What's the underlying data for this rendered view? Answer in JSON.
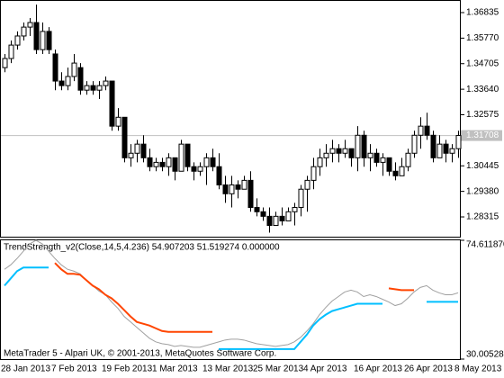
{
  "chart_data": [
    {
      "type": "candlestick",
      "categories": [
        "28 Jan 2013",
        null,
        null,
        null,
        null,
        null,
        null,
        null,
        "7 Feb 2013",
        null,
        null,
        null,
        null,
        null,
        null,
        null,
        "19 Feb 2013",
        null,
        null,
        null,
        null,
        null,
        null,
        null,
        "1 Mar 2013",
        null,
        null,
        null,
        null,
        null,
        null,
        null,
        "13 Mar 2013",
        null,
        null,
        null,
        null,
        null,
        null,
        null,
        "25 Mar 2013",
        null,
        null,
        null,
        null,
        null,
        null,
        null,
        "4 Apr 2013",
        null,
        null,
        null,
        null,
        null,
        null,
        null,
        "16 Apr 2013",
        null,
        null,
        null,
        null,
        null,
        null,
        null,
        "26 Apr 2013",
        null,
        null,
        null,
        null,
        null,
        null,
        null,
        "8 May 2013"
      ],
      "open": [
        1.3454,
        1.3492,
        1.3548,
        1.3586,
        1.3623,
        1.3642,
        1.3529,
        1.3605,
        1.3511,
        1.3398,
        1.3379,
        1.3417,
        1.3454,
        1.336,
        1.3379,
        1.336,
        1.3379,
        1.3398,
        1.321,
        1.3247,
        1.3078,
        1.3097,
        1.3135,
        1.3078,
        1.3041,
        1.3059,
        1.3041,
        1.3078,
        1.3022,
        1.3135,
        1.3041,
        1.3022,
        1.3041,
        1.3078,
        1.3041,
        1.2965,
        1.2928,
        1.2965,
        1.2947,
        1.2984,
        1.2871,
        1.2853,
        1.2834,
        1.2796,
        1.2834,
        1.2815,
        1.2853,
        1.2871,
        1.2947,
        1.2984,
        1.3041,
        1.3078,
        1.3097,
        1.3116,
        1.3097,
        1.3116,
        1.3078,
        1.3172,
        1.3078,
        1.3097,
        1.3059,
        1.3078,
        1.3022,
        1.3003,
        1.3041,
        1.3097,
        1.3172,
        1.321,
        1.3172,
        1.3078,
        1.3135,
        1.3097,
        1.3116
      ],
      "high": [
        1.3511,
        1.3567,
        1.3605,
        1.3642,
        1.3661,
        1.3717,
        1.3642,
        1.3623,
        1.3529,
        1.3435,
        1.3454,
        1.3511,
        1.3473,
        1.3398,
        1.3398,
        1.3398,
        1.3417,
        1.3398,
        1.3285,
        1.3247,
        1.3135,
        1.3153,
        1.3172,
        1.3116,
        1.3078,
        1.3078,
        1.3097,
        1.3078,
        1.3153,
        1.3135,
        1.3059,
        1.3059,
        1.3097,
        1.3116,
        1.3097,
        1.3003,
        1.3003,
        1.2984,
        1.3003,
        1.3022,
        1.2909,
        1.2871,
        1.2871,
        1.2853,
        1.2871,
        1.2871,
        1.289,
        1.2965,
        1.3003,
        1.3078,
        1.3116,
        1.3135,
        1.3153,
        1.3135,
        1.3153,
        1.3116,
        1.321,
        1.3191,
        1.3135,
        1.3116,
        1.3097,
        1.3078,
        1.3059,
        1.3078,
        1.3116,
        1.3191,
        1.3247,
        1.3266,
        1.3191,
        1.3172,
        1.3153,
        1.3135,
        1.3191
      ],
      "low": [
        1.3435,
        1.3473,
        1.3529,
        1.3567,
        1.3586,
        1.3511,
        1.3511,
        1.3511,
        1.336,
        1.336,
        1.336,
        1.3398,
        1.3341,
        1.3341,
        1.3341,
        1.3323,
        1.336,
        1.3191,
        1.3191,
        1.3059,
        1.3041,
        1.3059,
        1.3059,
        1.3022,
        1.3022,
        1.3022,
        1.3003,
        1.2984,
        1.3022,
        1.3022,
        1.2984,
        1.3003,
        1.2965,
        1.3022,
        1.2947,
        1.289,
        1.2871,
        1.2909,
        1.2947,
        1.2853,
        1.2834,
        1.2815,
        1.2766,
        1.2796,
        1.2796,
        1.2815,
        1.2796,
        1.2834,
        1.2853,
        1.2947,
        1.3003,
        1.3041,
        1.3059,
        1.3059,
        1.3078,
        1.3041,
        1.3022,
        1.3041,
        1.3022,
        1.3041,
        1.3003,
        1.3003,
        1.2984,
        1.3003,
        1.3022,
        1.3078,
        1.3116,
        1.3153,
        1.3059,
        1.3078,
        1.3059,
        1.3059,
        1.3078
      ],
      "close": [
        1.3492,
        1.3548,
        1.3586,
        1.3623,
        1.3642,
        1.3529,
        1.3605,
        1.3529,
        1.3398,
        1.3379,
        1.3417,
        1.3473,
        1.336,
        1.3379,
        1.336,
        1.3379,
        1.3398,
        1.321,
        1.3247,
        1.3078,
        1.3097,
        1.3135,
        1.3078,
        1.3041,
        1.3059,
        1.3041,
        1.3078,
        1.3022,
        1.3135,
        1.3041,
        1.3022,
        1.3041,
        1.3078,
        1.3041,
        1.2965,
        1.2928,
        1.2965,
        1.2947,
        1.2984,
        1.2871,
        1.2853,
        1.2834,
        1.2796,
        1.2834,
        1.2815,
        1.2853,
        1.2871,
        1.2947,
        1.2984,
        1.3041,
        1.3078,
        1.3097,
        1.3116,
        1.3097,
        1.3116,
        1.3078,
        1.3172,
        1.3078,
        1.3097,
        1.3059,
        1.3078,
        1.3022,
        1.3003,
        1.3041,
        1.3097,
        1.3172,
        1.321,
        1.3172,
        1.3078,
        1.3135,
        1.3097,
        1.3116,
        1.3171
      ],
      "ylim": [
        1.2749,
        1.3736
      ],
      "yticks": [
        1.36835,
        {
          "value": 1.3577,
          "label": "1.35770"
        },
        1.34705,
        {
          "value": 1.3364,
          "label": "1.33640"
        },
        1.32575,
        1.30445,
        {
          "value": 1.2938,
          "label": "1.29380"
        },
        1.28315
      ],
      "last_price": 1.31708,
      "last_price_color": "#c0c0c0",
      "bull_color": "#ffffff",
      "bear_color": "#000000",
      "outline_color": "#000000"
    },
    {
      "type": "line",
      "title": "TrendStrength_v2(Close,14,5,4.236) 54.907203 51.519274 0.000000",
      "annotation": "MetaTrader 5 - Alpari UK, © 2001-2013, MetaQuotes Software Corp.",
      "series": [
        {
          "color": "#a0a0a0",
          "values": [
            63.72,
            65.42,
            67.8,
            70.53,
            73.25,
            74.61,
            73.25,
            70.53,
            67.8,
            65.42,
            63.72,
            63.03,
            62.01,
            59.63,
            57.59,
            55.54,
            54.18,
            51.46,
            49.07,
            46.01,
            43.97,
            41.92,
            39.88,
            37.84,
            36.48,
            35.8,
            35.46,
            34.78,
            35.12,
            34.78,
            34.44,
            34.44,
            35.12,
            35.8,
            36.48,
            37.16,
            37.5,
            37.5,
            37.16,
            36.48,
            35.8,
            35.46,
            35.12,
            34.78,
            35.12,
            35.46,
            36.48,
            38.18,
            40.56,
            43.29,
            46.69,
            49.41,
            51.8,
            53.5,
            55.2,
            55.89,
            55.2,
            53.5,
            54.18,
            53.5,
            52.48,
            51.46,
            50.1,
            50.78,
            52.82,
            55.2,
            56.91,
            57.59,
            55.89,
            54.86,
            54.18,
            54.18,
            54.91
          ]
        },
        {
          "color": "#ff4500",
          "values": [
            null,
            null,
            null,
            null,
            null,
            null,
            null,
            null,
            66.1,
            63.72,
            62.01,
            62.01,
            61.67,
            59.63,
            57.59,
            56.23,
            54.18,
            52.82,
            50.78,
            48.39,
            46.01,
            43.97,
            43.29,
            42.61,
            41.58,
            40.56,
            40.22,
            40.22,
            40.22,
            40.22,
            40.22,
            40.22,
            40.22,
            40.22,
            null,
            null,
            null,
            null,
            null,
            null,
            null,
            null,
            null,
            null,
            null,
            null,
            null,
            null,
            null,
            null,
            null,
            null,
            null,
            null,
            null,
            null,
            null,
            null,
            null,
            null,
            null,
            56.57,
            56.23,
            55.89,
            55.89,
            55.89,
            null,
            null,
            null,
            null,
            null,
            null,
            null
          ]
        },
        {
          "color": "#00bfff",
          "values": [
            57.59,
            60.31,
            63.03,
            64.4,
            64.4,
            64.4,
            64.4,
            64.4,
            null,
            null,
            null,
            null,
            null,
            null,
            null,
            null,
            null,
            null,
            null,
            null,
            null,
            null,
            null,
            null,
            null,
            null,
            null,
            null,
            null,
            null,
            null,
            null,
            null,
            null,
            33.75,
            33.75,
            33.75,
            33.75,
            33.75,
            33.75,
            33.75,
            33.75,
            33.75,
            33.75,
            33.75,
            33.75,
            33.75,
            36.48,
            39.2,
            42.61,
            44.99,
            46.69,
            48.05,
            48.73,
            49.41,
            50.1,
            50.78,
            50.78,
            50.78,
            50.78,
            50.78,
            null,
            null,
            null,
            null,
            null,
            null,
            51.52,
            51.52,
            51.52,
            51.52,
            51.52,
            51.52
          ]
        }
      ],
      "ylim": [
        30.005281,
        74.61187
      ],
      "yticks": [
        {
          "value": 74.61187,
          "label": "74.611870"
        },
        30.005281
      ]
    }
  ]
}
